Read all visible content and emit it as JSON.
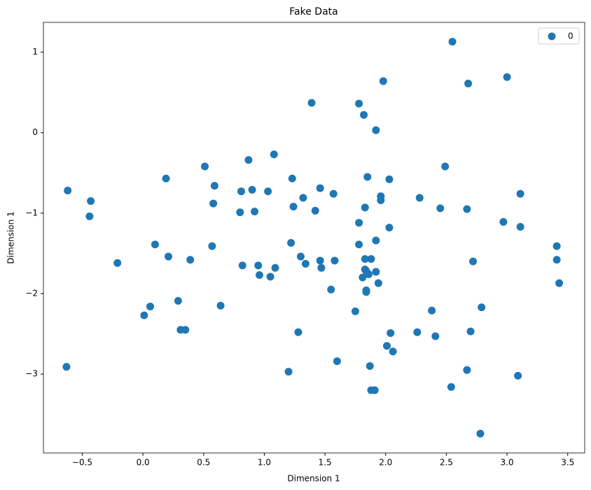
{
  "chart_data": {
    "type": "scatter",
    "title": "Fake Data",
    "x_label": "Dimension 1",
    "y_label": "Dimension 1",
    "legend": "upper right",
    "xlim": [
      -0.82,
      3.64
    ],
    "ylim": [
      -3.98,
      1.37
    ],
    "xticks": [
      {
        "value": -0.5,
        "label": "−0.5"
      },
      {
        "value": 0,
        "label": "0.0"
      },
      {
        "value": 0.5,
        "label": "0.5"
      },
      {
        "value": 1,
        "label": "1.0"
      },
      {
        "value": 1.5,
        "label": "1.5"
      },
      {
        "value": 2,
        "label": "2.0"
      },
      {
        "value": 2.5,
        "label": "2.5"
      },
      {
        "value": 3,
        "label": "3.0"
      },
      {
        "value": 3.5,
        "label": "3.5"
      }
    ],
    "yticks": [
      {
        "value": -3,
        "label": "−3"
      },
      {
        "value": -2,
        "label": "−2"
      },
      {
        "value": -1,
        "label": "−1"
      },
      0,
      1
    ],
    "series": [
      {
        "name": "0",
        "color": "#1f77b4",
        "x": [
          -0.62,
          -0.43,
          -0.44,
          -0.63,
          -0.21,
          0.01,
          0.06,
          0.1,
          0.19,
          0.21,
          0.29,
          0.31,
          0.35,
          0.39,
          0.51,
          0.57,
          0.59,
          0.58,
          0.64,
          0.81,
          0.8,
          0.82,
          0.87,
          0.9,
          0.92,
          0.95,
          0.96,
          1.03,
          1.05,
          1.08,
          1.09,
          1.2,
          1.22,
          1.23,
          1.24,
          1.28,
          1.3,
          1.32,
          1.34,
          1.39,
          1.42,
          1.46,
          1.46,
          1.47,
          1.55,
          1.57,
          1.58,
          1.6,
          1.75,
          1.78,
          1.78,
          1.78,
          1.82,
          1.83,
          1.81,
          1.83,
          1.83,
          1.84,
          1.84,
          1.85,
          1.84,
          1.86,
          1.87,
          1.88,
          1.88,
          1.91,
          1.92,
          1.92,
          1.92,
          1.94,
          1.96,
          1.96,
          1.98,
          2.03,
          2.03,
          2.01,
          2.04,
          2.06,
          2.26,
          2.28,
          2.38,
          2.41,
          2.45,
          2.49,
          2.54,
          2.55,
          2.67,
          2.67,
          2.68,
          2.7,
          2.72,
          2.78,
          2.79,
          2.97,
          3.0,
          3.09,
          3.11,
          3.11,
          3.41,
          3.41,
          3.43
        ],
        "values": [
          -0.72,
          -0.85,
          -1.04,
          -2.91,
          -1.62,
          -2.27,
          -2.16,
          -1.39,
          -0.57,
          -1.54,
          -2.09,
          -2.45,
          -2.45,
          -1.58,
          -0.42,
          -1.41,
          -0.66,
          -0.88,
          -2.15,
          -0.73,
          -0.99,
          -1.65,
          -0.34,
          -0.71,
          -0.98,
          -1.65,
          -1.77,
          -0.73,
          -1.79,
          -0.27,
          -1.68,
          -2.97,
          -1.37,
          -0.57,
          -0.92,
          -2.48,
          -1.54,
          -0.81,
          -1.63,
          0.37,
          -0.97,
          -0.69,
          -1.59,
          -1.68,
          -1.95,
          -0.76,
          -1.59,
          -2.84,
          -2.22,
          0.36,
          -1.12,
          -1.39,
          0.22,
          -0.93,
          -1.8,
          -1.7,
          -1.57,
          -1.72,
          -1.96,
          -0.55,
          -1.98,
          -1.76,
          -2.9,
          -1.57,
          -3.2,
          -3.2,
          0.03,
          -1.34,
          -1.73,
          -1.87,
          -0.84,
          -0.79,
          0.64,
          -0.58,
          -1.18,
          -2.65,
          -2.49,
          -2.72,
          -2.48,
          -0.81,
          -2.21,
          -2.53,
          -0.94,
          -0.42,
          -3.16,
          1.13,
          -0.95,
          -2.95,
          0.61,
          -2.47,
          -1.6,
          -3.74,
          -2.17,
          -1.11,
          0.69,
          -3.02,
          -0.76,
          -1.17,
          -1.41,
          -1.58,
          -1.87
        ]
      }
    ]
  }
}
